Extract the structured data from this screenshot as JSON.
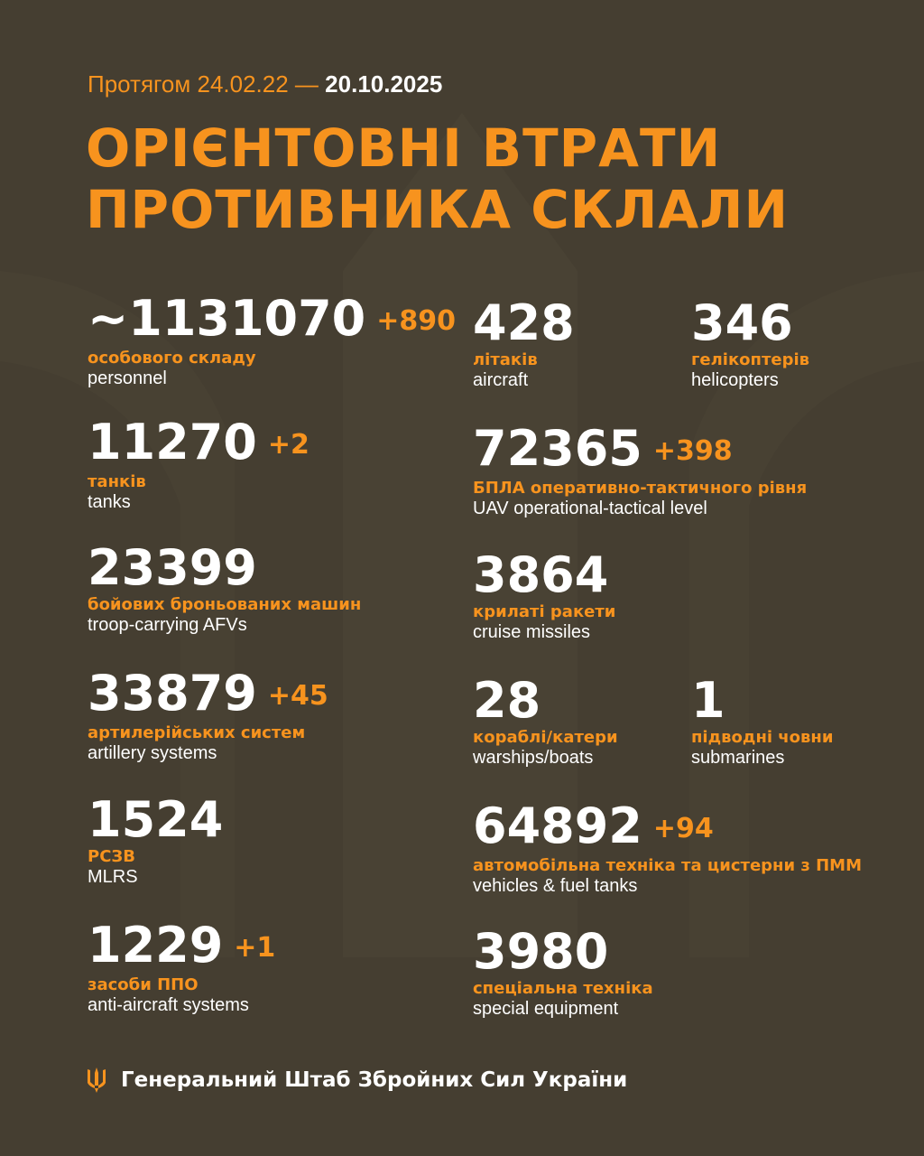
{
  "header": {
    "period_prefix": "Протягом 24.02.22 —",
    "period_end": "20.10.2025",
    "title_line1": "ОРІЄНТОВНІ ВТРАТИ",
    "title_line2": "ПРОТИВНИКА СКЛАЛИ"
  },
  "left": [
    {
      "value": "~1131070",
      "delta": "+890",
      "ua": "особового складу",
      "en": "personnel"
    },
    {
      "value": "11270",
      "delta": "+2",
      "ua": "танків",
      "en": "tanks"
    },
    {
      "value": "23399",
      "delta": "",
      "ua": "бойових броньованих машин",
      "en": "troop-carrying AFVs"
    },
    {
      "value": "33879",
      "delta": "+45",
      "ua": "артилерійських систем",
      "en": "artillery systems"
    },
    {
      "value": "1524",
      "delta": "",
      "ua": "РСЗВ",
      "en": "MLRS"
    },
    {
      "value": "1229",
      "delta": "+1",
      "ua": "засоби ППО",
      "en": "anti-aircraft systems"
    }
  ],
  "right": [
    {
      "value": "428",
      "delta": "",
      "ua": "літаків",
      "en": "aircraft"
    },
    {
      "value": "346",
      "delta": "",
      "ua": "гелікоптерів",
      "en": "helicopters"
    },
    {
      "value": "72365",
      "delta": "+398",
      "ua": "БПЛА оперативно-тактичного рівня",
      "en": "UAV operational-tactical level"
    },
    {
      "value": "3864",
      "delta": "",
      "ua": "крилаті ракети",
      "en": "cruise missiles"
    },
    {
      "value": "28",
      "delta": "",
      "ua": "кораблі/катери",
      "en": "warships/boats"
    },
    {
      "value": "1",
      "delta": "",
      "ua": "підводні човни",
      "en": "submarines"
    },
    {
      "value": "64892",
      "delta": "+94",
      "ua": "автомобільна техніка та цистерни з ПММ",
      "en": "vehicles & fuel tanks"
    },
    {
      "value": "3980",
      "delta": "",
      "ua": "спеціальна техніка",
      "en": "special equipment"
    }
  ],
  "footer": {
    "text": "Генеральний Штаб Збройних Сил України",
    "icon": "trident-icon"
  },
  "colors": {
    "background": "#453e31",
    "accent": "#f7931e",
    "text": "#ffffff"
  }
}
